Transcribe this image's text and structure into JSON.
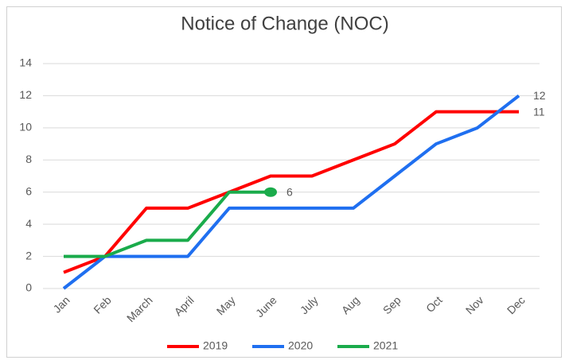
{
  "chart_data": {
    "type": "line",
    "title": "Notice of Change (NOC)",
    "categories": [
      "Jan",
      "Feb",
      "March",
      "April",
      "May",
      "June",
      "July",
      "Aug",
      "Sep",
      "Oct",
      "Nov",
      "Dec"
    ],
    "series": [
      {
        "name": "2019",
        "color": "#ff0000",
        "values": [
          1,
          2,
          5,
          5,
          6,
          7,
          7,
          8,
          9,
          11,
          11,
          11
        ]
      },
      {
        "name": "2020",
        "color": "#1f6ff0",
        "values": [
          0,
          2,
          2,
          2,
          5,
          5,
          5,
          5,
          7,
          9,
          10,
          12
        ]
      },
      {
        "name": "2021",
        "color": "#1aab4b",
        "values": [
          2,
          2,
          3,
          3,
          6,
          6,
          null,
          null,
          null,
          null,
          null,
          null
        ],
        "marker_last": true
      }
    ],
    "ylim": [
      0,
      14
    ],
    "yticks": [
      0,
      2,
      4,
      6,
      8,
      10,
      12,
      14
    ],
    "grid": true,
    "legend": "bottom"
  }
}
